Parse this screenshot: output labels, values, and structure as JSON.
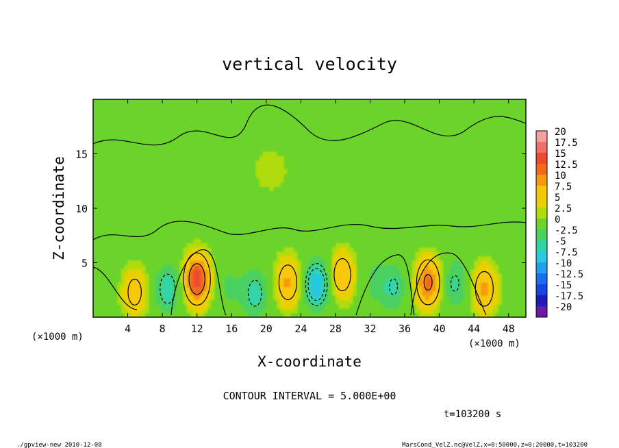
{
  "chart_data": {
    "type": "heatmap",
    "title": "vertical velocity",
    "xlabel": "X-coordinate",
    "ylabel": "Z-coordinate",
    "x_unit": "(×1000 m)",
    "y_unit": "(×1000 m)",
    "xlim": [
      0,
      50
    ],
    "ylim": [
      0,
      20
    ],
    "x_ticks": [
      "4",
      "8",
      "12",
      "16",
      "20",
      "24",
      "28",
      "32",
      "36",
      "40",
      "44",
      "48"
    ],
    "y_ticks": [
      "5",
      "10",
      "15"
    ],
    "colorbar": {
      "labels": [
        "20",
        "17.5",
        "15",
        "12.5",
        "10",
        "7.5",
        "5",
        "2.5",
        "0",
        "-2.5",
        "-5",
        "-7.5",
        "-10",
        "-12.5",
        "-15",
        "-17.5",
        "-20"
      ],
      "colors": [
        "#f4a0a0",
        "#f07070",
        "#ee4a30",
        "#f06a1a",
        "#f59a10",
        "#f8c808",
        "#ead000",
        "#b0dc10",
        "#6ad42a",
        "#48d060",
        "#30d4a8",
        "#28c8e0",
        "#20a0f0",
        "#1c6ef0",
        "#1844e0",
        "#1c1ab8",
        "#6a1aa8"
      ]
    },
    "field_centers": [
      {
        "x": 4.8,
        "z": 2.3,
        "w": 6.5
      },
      {
        "x": 8.6,
        "z": 2.6,
        "w": -7.0
      },
      {
        "x": 12.0,
        "z": 3.5,
        "w": 14.5
      },
      {
        "x": 15.7,
        "z": 2.8,
        "w": -3.0
      },
      {
        "x": 18.7,
        "z": 2.2,
        "w": -6.5
      },
      {
        "x": 22.5,
        "z": 3.2,
        "w": 8.0
      },
      {
        "x": 25.8,
        "z": 3.0,
        "w": -10.0
      },
      {
        "x": 28.8,
        "z": 3.9,
        "w": 7.5
      },
      {
        "x": 32.5,
        "z": 3.3,
        "w": -3.0
      },
      {
        "x": 34.7,
        "z": 2.8,
        "w": -5.5
      },
      {
        "x": 38.7,
        "z": 3.2,
        "w": 11.0
      },
      {
        "x": 41.8,
        "z": 3.1,
        "w": -5.5
      },
      {
        "x": 45.2,
        "z": 2.6,
        "w": 8.0
      },
      {
        "x": 20.5,
        "z": 13.5,
        "w": 1.5
      }
    ],
    "contour_interval": "CONTOUR INTERVAL = 5.000E+00",
    "time": "t=103200 s"
  },
  "footer": {
    "left": "./gpview-new  2010-12-08",
    "right": "MarsCond_VelZ.nc@VelZ,x=0:50000,z=0:20000,t=103200"
  }
}
